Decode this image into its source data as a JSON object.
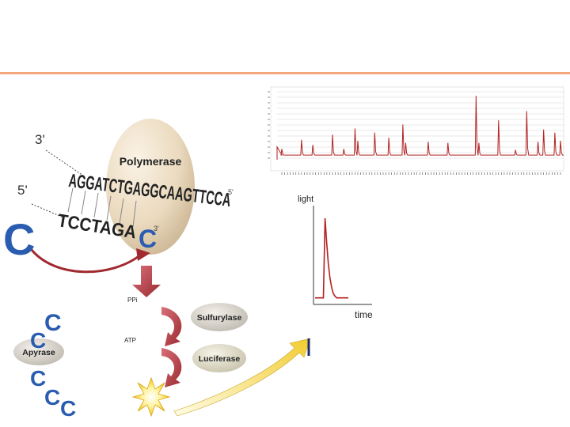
{
  "colors": {
    "accent_line": "#f4a77a",
    "cytosine_blue": "#2a5db0",
    "trace_red": "#b22222",
    "arrow_red": "#b2323a"
  },
  "labels": {
    "prime3": "3'",
    "prime5": "5'",
    "polymerase": "Polymerase",
    "template_strand": "AGGATCTGAGGCAAGTTCCA",
    "template_end": "5'",
    "growing_strand": "TCCTAGA",
    "incorporated_base": "C",
    "incorporated_end": "3'",
    "free_base": "C",
    "ppi": "PPi",
    "atp": "ATP",
    "sulfurylase": "Sulfurylase",
    "luciferase": "Luciferase",
    "apyrase": "Apyrase",
    "light": "light",
    "time": "time"
  },
  "apyrase_bases": [
    "C",
    "C",
    "C",
    "C",
    "C"
  ],
  "icons": [
    "flash-burst-icon",
    "curved-arrow-icon",
    "down-arrow-icon"
  ],
  "chart_data": [
    {
      "type": "line",
      "title": "",
      "description": "pyrogram trace with peaks",
      "x": [
        1,
        2,
        3,
        4,
        5,
        6,
        7,
        8,
        9,
        10,
        11,
        12,
        13,
        14,
        15,
        16,
        17,
        18,
        19,
        20,
        21,
        22,
        23,
        24,
        25,
        26,
        27,
        28,
        29,
        30,
        31,
        32,
        33,
        34,
        35,
        36,
        37,
        38,
        39,
        40,
        41,
        42,
        43,
        44,
        45,
        46,
        47,
        48,
        49,
        50,
        51,
        52,
        53,
        54,
        55,
        56,
        57,
        58,
        59,
        60,
        61,
        62,
        63,
        64,
        65,
        66,
        67,
        68,
        69,
        70,
        71,
        72,
        73,
        74,
        75,
        76,
        77,
        78,
        79,
        80,
        81,
        82,
        83,
        84,
        85,
        86,
        87,
        88,
        89,
        90,
        91,
        92,
        93,
        94,
        95,
        96,
        97,
        98,
        99,
        100
      ],
      "values": [
        0.6,
        0,
        0,
        0,
        0,
        0,
        0,
        1.5,
        0,
        0,
        0,
        1,
        0,
        0,
        0,
        0,
        0,
        0,
        2,
        0,
        0,
        0,
        0.6,
        0,
        0,
        0,
        2.6,
        1.4,
        0,
        0,
        0,
        0,
        0,
        2.2,
        0,
        0,
        0,
        0,
        1.7,
        0,
        0,
        0,
        0,
        3,
        1.2,
        0,
        0,
        0,
        0,
        0,
        0,
        0,
        1.3,
        0,
        0,
        0,
        0,
        0,
        0,
        1.2,
        0,
        0,
        0,
        0,
        0,
        0,
        0,
        0,
        0,
        5.8,
        1.2,
        0,
        0,
        0,
        0,
        0,
        0,
        3.4,
        0,
        0,
        0,
        0,
        0,
        0.5,
        0,
        0,
        0,
        4.3,
        0,
        0,
        0,
        1.3,
        0,
        2.5,
        0,
        0,
        0,
        2.2,
        0,
        1.4
      ],
      "baseline": 0.3
    },
    {
      "type": "line",
      "xlabel": "time",
      "ylabel": "light",
      "description": "single light pulse: sharp rise then exponential decay",
      "x": [
        0,
        1,
        2,
        3,
        4,
        5,
        6,
        7,
        8,
        9,
        10,
        11,
        12,
        13,
        14,
        15,
        16,
        17,
        18,
        19,
        20
      ],
      "values": [
        0.05,
        0.05,
        0.05,
        0.05,
        0.05,
        0.05,
        1.0,
        0.7,
        0.45,
        0.28,
        0.17,
        0.1,
        0.07,
        0.05,
        0.05,
        0.05,
        0.05,
        0.05,
        0.05,
        0.05,
        0.05
      ]
    }
  ]
}
